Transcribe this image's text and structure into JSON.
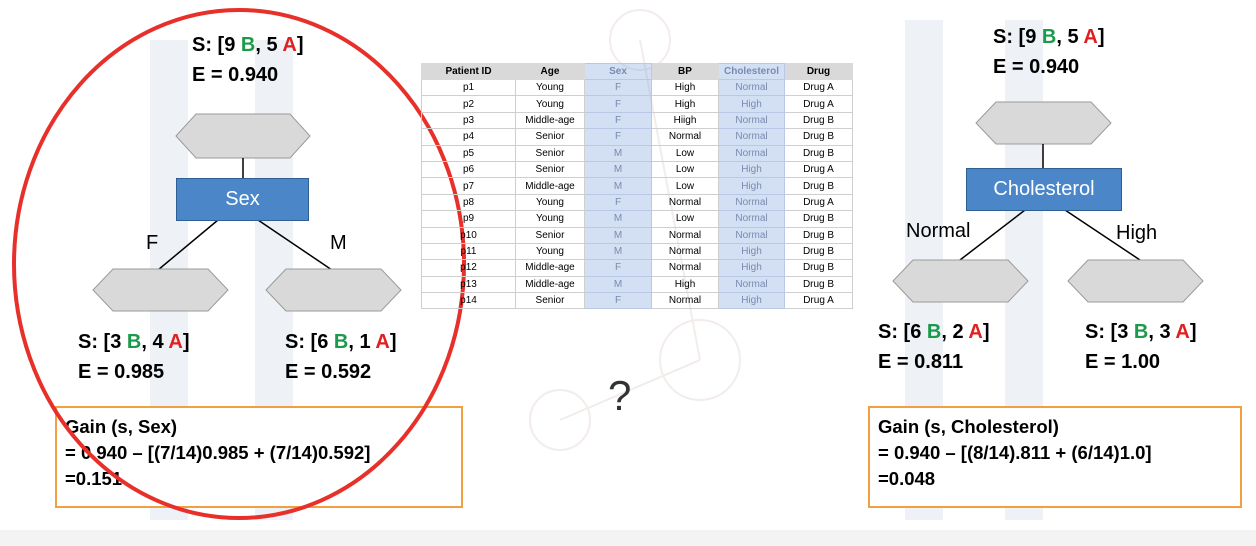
{
  "left_tree": {
    "root_stat": {
      "prefix": "S: [9 ",
      "b": "B",
      "mid": ", 5 ",
      "a": "A",
      "suffix": "]"
    },
    "root_entropy": "E = 0.940",
    "split_label": "Sex",
    "branch_left": "F",
    "branch_right": "M",
    "leaf_left_stat": {
      "prefix": "S: [3 ",
      "b": "B",
      "mid": ", 4 ",
      "a": "A",
      "suffix": "]"
    },
    "leaf_left_entropy": "E = 0.985",
    "leaf_right_stat": {
      "prefix": "S: [6 ",
      "b": "B",
      "mid": ", 1 ",
      "a": "A",
      "suffix": "]"
    },
    "leaf_right_entropy": "E = 0.592",
    "gain": {
      "line1": "Gain (s, Sex)",
      "line2": "= 0.940 – [(7/14)0.985 + (7/14)0.592]",
      "line3": "=0.151"
    }
  },
  "right_tree": {
    "root_stat": {
      "prefix": "S: [9 ",
      "b": "B",
      "mid": ", 5 ",
      "a": "A",
      "suffix": "]"
    },
    "root_entropy": "E = 0.940",
    "split_label": "Cholesterol",
    "branch_left": "Normal",
    "branch_right": "High",
    "leaf_left_stat": {
      "prefix": "S: [6 ",
      "b": "B",
      "mid": ", 2 ",
      "a": "A",
      "suffix": "]"
    },
    "leaf_left_entropy": "E = 0.811",
    "leaf_right_stat": {
      "prefix": "S: [3 ",
      "b": "B",
      "mid": ", 3 ",
      "a": "A",
      "suffix": "]"
    },
    "leaf_right_entropy": "E = 1.00",
    "gain": {
      "line1": "Gain (s, Cholesterol)",
      "line2": "= 0.940 – [(8/14).811 + (6/14)1.0]",
      "line3": "=0.048"
    }
  },
  "question_mark": "?",
  "table": {
    "columns": [
      "Patient ID",
      "Age",
      "Sex",
      "BP",
      "Cholesterol",
      "Drug"
    ],
    "highlight_columns": [
      "Sex",
      "Cholesterol"
    ],
    "rows": [
      [
        "p1",
        "Young",
        "F",
        "High",
        "Normal",
        "Drug A"
      ],
      [
        "p2",
        "Young",
        "F",
        "High",
        "High",
        "Drug A"
      ],
      [
        "p3",
        "Middle-age",
        "F",
        "Hiigh",
        "Normal",
        "Drug B"
      ],
      [
        "p4",
        "Senior",
        "F",
        "Normal",
        "Normal",
        "Drug B"
      ],
      [
        "p5",
        "Senior",
        "M",
        "Low",
        "Normal",
        "Drug B"
      ],
      [
        "p6",
        "Senior",
        "M",
        "Low",
        "High",
        "Drug A"
      ],
      [
        "p7",
        "Middle-age",
        "M",
        "Low",
        "High",
        "Drug B"
      ],
      [
        "p8",
        "Young",
        "F",
        "Normal",
        "Normal",
        "Drug A"
      ],
      [
        "p9",
        "Young",
        "M",
        "Low",
        "Normal",
        "Drug B"
      ],
      [
        "p10",
        "Senior",
        "M",
        "Normal",
        "Normal",
        "Drug B"
      ],
      [
        "p11",
        "Young",
        "M",
        "Normal",
        "High",
        "Drug B"
      ],
      [
        "p12",
        "Middle-age",
        "F",
        "Normal",
        "High",
        "Drug B"
      ],
      [
        "p13",
        "Middle-age",
        "M",
        "High",
        "Normal",
        "Drug B"
      ],
      [
        "p14",
        "Senior",
        "F",
        "Normal",
        "High",
        "Drug A"
      ]
    ]
  },
  "colors": {
    "b_label": "#1a9a4a",
    "a_label": "#e02020",
    "node_fill": "#4a86c8",
    "gain_border": "#f0a040",
    "circle": "#e8302a"
  }
}
